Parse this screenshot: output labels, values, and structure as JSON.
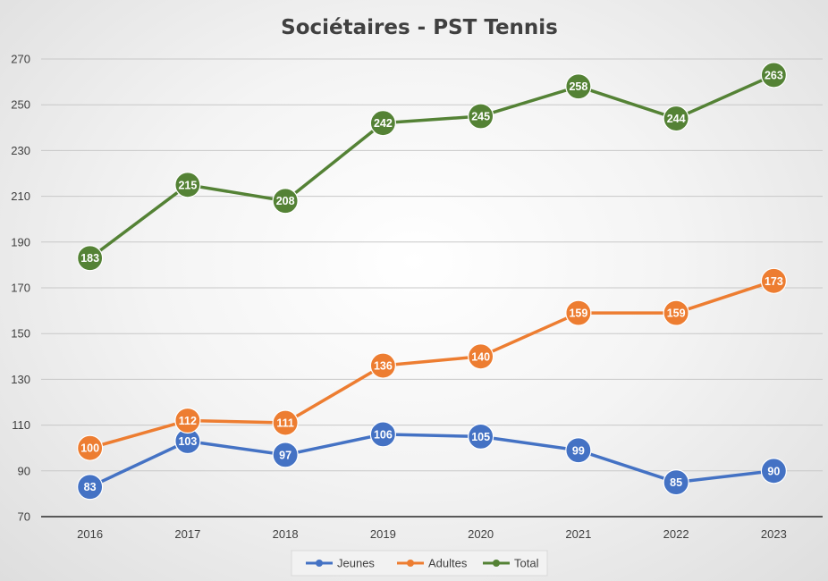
{
  "chart_data": {
    "type": "line",
    "title": "Sociétaires - PST Tennis",
    "xlabel": "",
    "ylabel": "",
    "categories": [
      "2016",
      "2017",
      "2018",
      "2019",
      "2020",
      "2021",
      "2022",
      "2023"
    ],
    "ylim": [
      70,
      270
    ],
    "yticks": [
      70,
      90,
      110,
      130,
      150,
      170,
      190,
      210,
      230,
      250,
      270
    ],
    "grid": true,
    "legend_position": "bottom",
    "data_labels": true,
    "series": [
      {
        "name": "Jeunes",
        "color": "#4472c4",
        "values": [
          83,
          103,
          97,
          106,
          105,
          99,
          85,
          90
        ]
      },
      {
        "name": "Adultes",
        "color": "#ed7d31",
        "values": [
          100,
          112,
          111,
          136,
          140,
          159,
          159,
          173
        ]
      },
      {
        "name": "Total",
        "color": "#548235",
        "values": [
          183,
          215,
          208,
          242,
          245,
          258,
          244,
          263
        ]
      }
    ]
  }
}
